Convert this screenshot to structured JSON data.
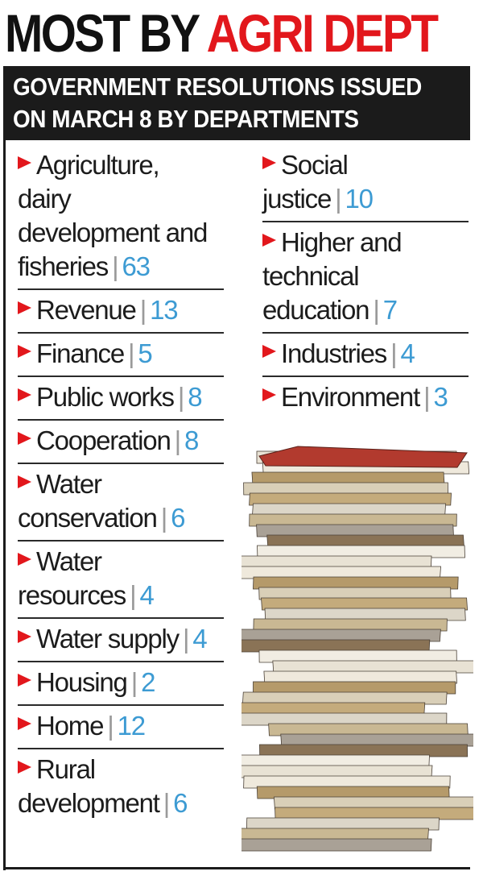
{
  "headline": {
    "part1": "MOST BY ",
    "part2": "AGRI DEPT"
  },
  "banner": {
    "line1": "GOVERNMENT RESOLUTIONS ISSUED",
    "line2": "ON MARCH 8 BY DEPARTMENTS"
  },
  "separator": "|",
  "left_items": [
    {
      "lines": [
        "Agriculture,",
        "dairy",
        "development and",
        "fisheries"
      ],
      "count": "63"
    },
    {
      "lines": [
        "Revenue"
      ],
      "count": "13"
    },
    {
      "lines": [
        "Finance"
      ],
      "count": "5"
    },
    {
      "lines": [
        "Public works"
      ],
      "count": "8"
    },
    {
      "lines": [
        "Cooperation"
      ],
      "count": "8"
    },
    {
      "lines": [
        "Water",
        "conservation"
      ],
      "count": "6"
    },
    {
      "lines": [
        "Water",
        "resources"
      ],
      "count": "4"
    },
    {
      "lines": [
        "Water supply"
      ],
      "count": "4"
    },
    {
      "lines": [
        "Housing"
      ],
      "count": "2"
    },
    {
      "lines": [
        "Home"
      ],
      "count": "12"
    },
    {
      "lines": [
        "Rural",
        "development"
      ],
      "count": "6"
    }
  ],
  "right_items": [
    {
      "lines": [
        "Social",
        "justice"
      ],
      "count": "10"
    },
    {
      "lines": [
        "Higher and",
        "technical",
        "education"
      ],
      "count": "7"
    },
    {
      "lines": [
        "Industries"
      ],
      "count": "4"
    },
    {
      "lines": [
        "Environment"
      ],
      "count": "3"
    }
  ],
  "colors": {
    "accent_red": "#e2171c",
    "count_blue": "#3d9bd3",
    "banner_bg": "#1b1b1b"
  },
  "image": {
    "subject": "stack-of-files-illustration"
  }
}
